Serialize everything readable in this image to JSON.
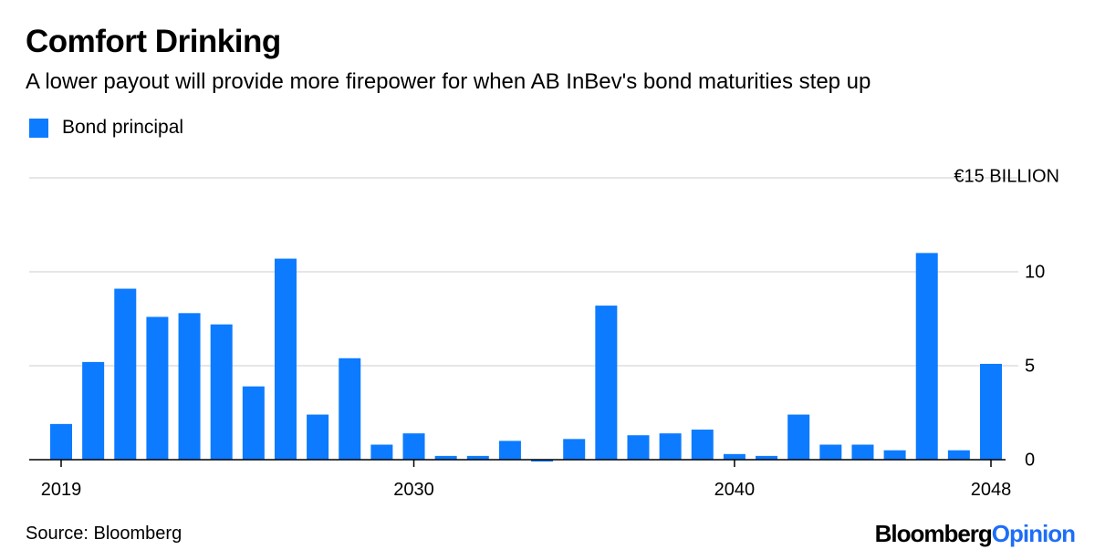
{
  "header": {
    "title": "Comfort Drinking",
    "subtitle": "A lower payout will provide more firepower for when AB InBev's bond maturities step up"
  },
  "legend": {
    "label": "Bond principal"
  },
  "footer": {
    "source": "Source: Bloomberg",
    "brand_part1": "Bloomberg",
    "brand_part2": "Opinion"
  },
  "colors": {
    "bar": "#0c7bff",
    "grid": "#e6e6e6",
    "axis": "#000000",
    "brand_accent": "#1d6ef7"
  },
  "chart_data": {
    "type": "bar",
    "title": "Comfort Drinking",
    "subtitle": "A lower payout will provide more firepower for when AB InBev's bond maturities step up",
    "xlabel": "",
    "ylabel": "",
    "ylim": [
      0,
      15
    ],
    "y_unit_label": "€15 BILLION",
    "yticks": [
      0,
      5,
      10,
      15
    ],
    "ytick_labels": [
      "0",
      "5",
      "10",
      "€15 BILLION"
    ],
    "xticks": [
      2019,
      2030,
      2040,
      2048
    ],
    "xtick_labels": [
      "2019",
      "2030",
      "2040",
      "2048"
    ],
    "grid": true,
    "legend_position": "top-left",
    "series": [
      {
        "name": "Bond principal",
        "x": [
          2019,
          2020,
          2021,
          2022,
          2023,
          2024,
          2025,
          2026,
          2027,
          2028,
          2029,
          2030,
          2031,
          2032,
          2033,
          2034,
          2035,
          2036,
          2037,
          2038,
          2039,
          2040,
          2041,
          2042,
          2043,
          2044,
          2045,
          2046,
          2047,
          2048
        ],
        "values": [
          1.9,
          5.2,
          9.1,
          7.6,
          7.8,
          7.2,
          3.9,
          10.7,
          2.4,
          5.4,
          0.8,
          1.4,
          0.2,
          0.2,
          1.0,
          -0.1,
          1.1,
          8.2,
          1.3,
          1.4,
          1.6,
          0.3,
          0.2,
          2.4,
          0.8,
          0.8,
          0.5,
          11.0,
          0.5,
          5.1
        ]
      }
    ]
  }
}
